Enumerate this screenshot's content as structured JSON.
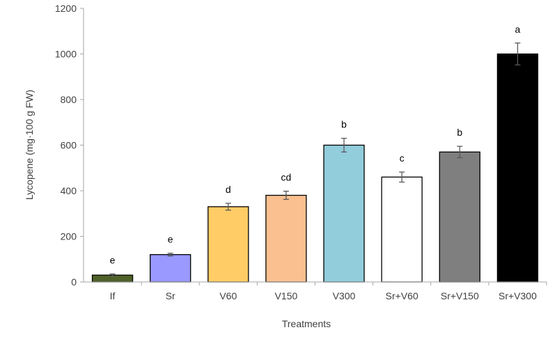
{
  "chart_data": {
    "type": "bar",
    "title": "",
    "xlabel": "Treatments",
    "ylabel": "Lycopene (mg·100 g FW)",
    "ylim": [
      0,
      1200
    ],
    "yticks": [
      0,
      200,
      400,
      600,
      800,
      1000,
      1200
    ],
    "categories": [
      "If",
      "Sr",
      "V60",
      "V150",
      "V300",
      "Sr+V60",
      "Sr+V150",
      "Sr+V300"
    ],
    "values": [
      30,
      120,
      330,
      380,
      600,
      460,
      570,
      1000
    ],
    "errors": [
      5,
      6,
      15,
      18,
      30,
      22,
      25,
      48
    ],
    "significance": [
      "e",
      "e",
      "d",
      "cd",
      "b",
      "c",
      "b",
      "a"
    ],
    "colors": [
      "#4f6228",
      "#9999ff",
      "#ffcc66",
      "#fac090",
      "#92cddc",
      "#ffffff",
      "#7f7f7f",
      "#000000"
    ],
    "grid": false
  }
}
